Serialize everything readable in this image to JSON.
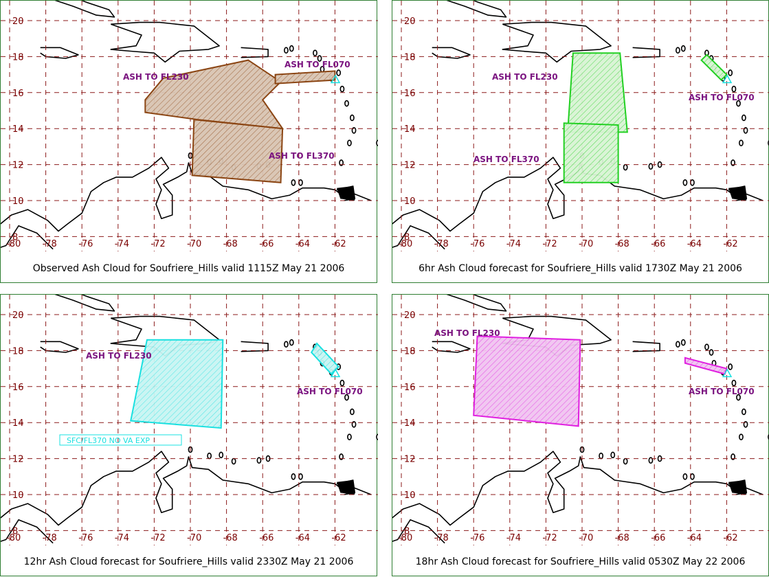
{
  "map": {
    "lon_ticks": [
      -80,
      -78,
      -76,
      -74,
      -72,
      -70,
      -68,
      -66,
      -64,
      -62
    ],
    "lat_ticks": [
      20,
      18,
      16,
      14,
      12,
      10,
      8
    ],
    "grid_color": "#8b1a1a",
    "coast_color": "#000000"
  },
  "panels": [
    {
      "caption": "Observed Ash Cloud for Soufriere_Hills valid 1115Z May 21 2006",
      "color": "#8b4513",
      "fill": "#d8c4b2",
      "labels": [
        "ASH TO FL230",
        "ASH TO FL070",
        "ASH TO FL370"
      ],
      "polygons": [
        {
          "name": "ash-area-fl230",
          "points": [
            [
              -72.5,
              15.6
            ],
            [
              -71.5,
              16.8
            ],
            [
              -66.8,
              17.8
            ],
            [
              -65.0,
              16.6
            ],
            [
              -66.0,
              15.6
            ],
            [
              -64.9,
              14.0
            ],
            [
              -69.6,
              14.5
            ],
            [
              -72.5,
              14.9
            ]
          ]
        },
        {
          "name": "ash-area-fl370",
          "points": [
            [
              -69.8,
              14.5
            ],
            [
              -64.9,
              14.0
            ],
            [
              -65.0,
              11.0
            ],
            [
              -69.9,
              11.4
            ]
          ]
        },
        {
          "name": "ash-area-fl070",
          "points": [
            [
              -65.3,
              17.0
            ],
            [
              -62.0,
              17.2
            ],
            [
              -62.0,
              16.7
            ],
            [
              -65.3,
              16.5
            ]
          ]
        }
      ]
    },
    {
      "caption": "6hr Ash Cloud forecast for Soufriere_Hills valid 1730Z May 21 2006",
      "color": "#22d022",
      "fill": "#d8f3d4",
      "labels": [
        "ASH TO FL230",
        "ASH TO FL070",
        "ASH TO FL370"
      ],
      "polygons": [
        {
          "name": "ash-area-fl230",
          "points": [
            [
              -70.5,
              18.2
            ],
            [
              -67.9,
              18.2
            ],
            [
              -67.5,
              13.8
            ],
            [
              -70.8,
              13.8
            ]
          ]
        },
        {
          "name": "ash-area-fl370",
          "points": [
            [
              -71.0,
              14.3
            ],
            [
              -68.0,
              14.2
            ],
            [
              -68.0,
              11.0
            ],
            [
              -71.0,
              11.0
            ]
          ]
        },
        {
          "name": "ash-area-fl070",
          "points": [
            [
              -63.1,
              18.1
            ],
            [
              -62.0,
              17.0
            ],
            [
              -62.3,
              16.7
            ],
            [
              -63.4,
              17.8
            ]
          ]
        }
      ]
    },
    {
      "caption": "12hr Ash Cloud forecast for Soufriere_Hills valid 2330Z May 21 2006",
      "color": "#19e0e0",
      "fill": "#c8f4f2",
      "labels": [
        "ASH TO FL230",
        "ASH TO FL070"
      ],
      "note": "SFC/FL370  NO  VA  EXP",
      "polygons": [
        {
          "name": "ash-area-fl230",
          "points": [
            [
              -72.4,
              18.6
            ],
            [
              -68.2,
              18.6
            ],
            [
              -68.3,
              13.7
            ],
            [
              -73.3,
              14.1
            ]
          ]
        },
        {
          "name": "ash-area-fl070",
          "points": [
            [
              -63.0,
              18.4
            ],
            [
              -61.8,
              17.1
            ],
            [
              -62.2,
              16.7
            ],
            [
              -63.3,
              17.9
            ]
          ]
        }
      ]
    },
    {
      "caption": "18hr Ash Cloud forecast for Soufriere_Hills valid 0530Z May 22 2006",
      "color": "#e020e0",
      "fill": "#f0c4f0",
      "labels": [
        "ASH TO FL230",
        "ASH TO FL070"
      ],
      "polygons": [
        {
          "name": "ash-area-fl230",
          "points": [
            [
              -75.8,
              18.8
            ],
            [
              -70.1,
              18.6
            ],
            [
              -70.2,
              13.8
            ],
            [
              -76.0,
              14.4
            ]
          ]
        },
        {
          "name": "ash-area-fl070",
          "points": [
            [
              -64.3,
              17.6
            ],
            [
              -62.0,
              17.0
            ],
            [
              -62.1,
              16.7
            ],
            [
              -64.3,
              17.3
            ]
          ]
        }
      ]
    }
  ]
}
